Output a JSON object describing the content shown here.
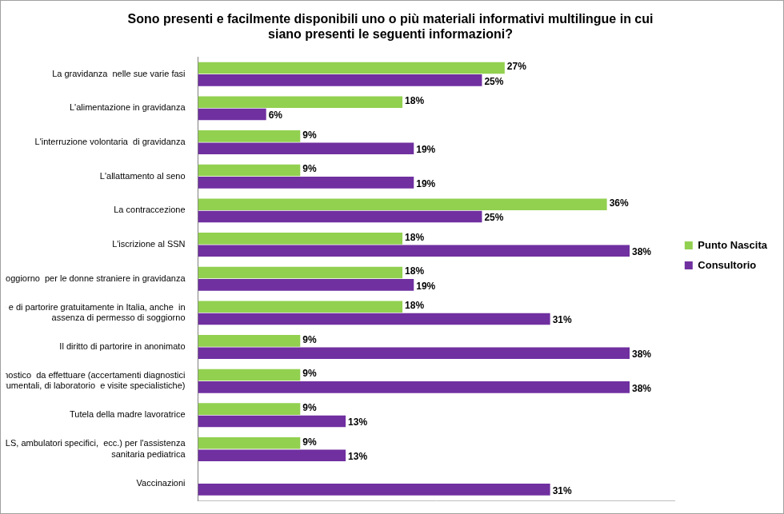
{
  "chart_data": {
    "type": "bar",
    "orientation": "horizontal",
    "title": [
      "Sono presenti e facilmente disponibili uno o più materiali informativi multilingue in cui",
      "siano presenti le seguenti informazioni?"
    ],
    "categories": [
      "La gravidanza  nelle sue varie fasi",
      "L'alimentazione in gravidanza",
      "L'interruzione volontaria  di gravidanza",
      "L'allattamento al seno",
      "La contraccezione",
      "L'iscrizione al SSN",
      "Il diritto al permesso di soggiorno  per le donne straniere in gravidanza",
      [
        "Il diritto di essere assistite e di partorire gratuitamente in Italia, anche  in",
        "assenza di permesso di soggiorno"
      ],
      "Il diritto di partorire in anonimato",
      [
        "Il percorso diagnostico  da effettuare (accertamenti diagnostici",
        "strumentali, di laboratorio  e visite specialistiche)"
      ],
      "Tutela della madre lavoratrice",
      [
        "Servizi a cui rivolgersi (PLS, ambulatori specifici,  ecc.) per l'assistenza",
        "sanitaria pediatrica"
      ],
      "Vaccinazioni"
    ],
    "series": [
      {
        "name": "Punto Nascita",
        "color": "#92d050",
        "values": [
          27,
          18,
          9,
          9,
          36,
          18,
          18,
          18,
          9,
          9,
          9,
          9,
          0
        ],
        "value_labels": [
          "27%",
          "18%",
          "9%",
          "9%",
          "36%",
          "18%",
          "18%",
          "18%",
          "9%",
          "9%",
          "9%",
          "9%",
          null
        ]
      },
      {
        "name": "Consultorio",
        "color": "#7030a0",
        "values": [
          25,
          6,
          19,
          19,
          25,
          38,
          19,
          31,
          38,
          38,
          13,
          13,
          31
        ],
        "value_labels": [
          "25%",
          "6%",
          "19%",
          "19%",
          "25%",
          "38%",
          "19%",
          "31%",
          "38%",
          "38%",
          "13%",
          "13%",
          "31%"
        ]
      }
    ],
    "xlim": [
      0,
      42
    ],
    "grid": false,
    "legend": "right",
    "data_labels": true,
    "tick_labels": "y"
  }
}
